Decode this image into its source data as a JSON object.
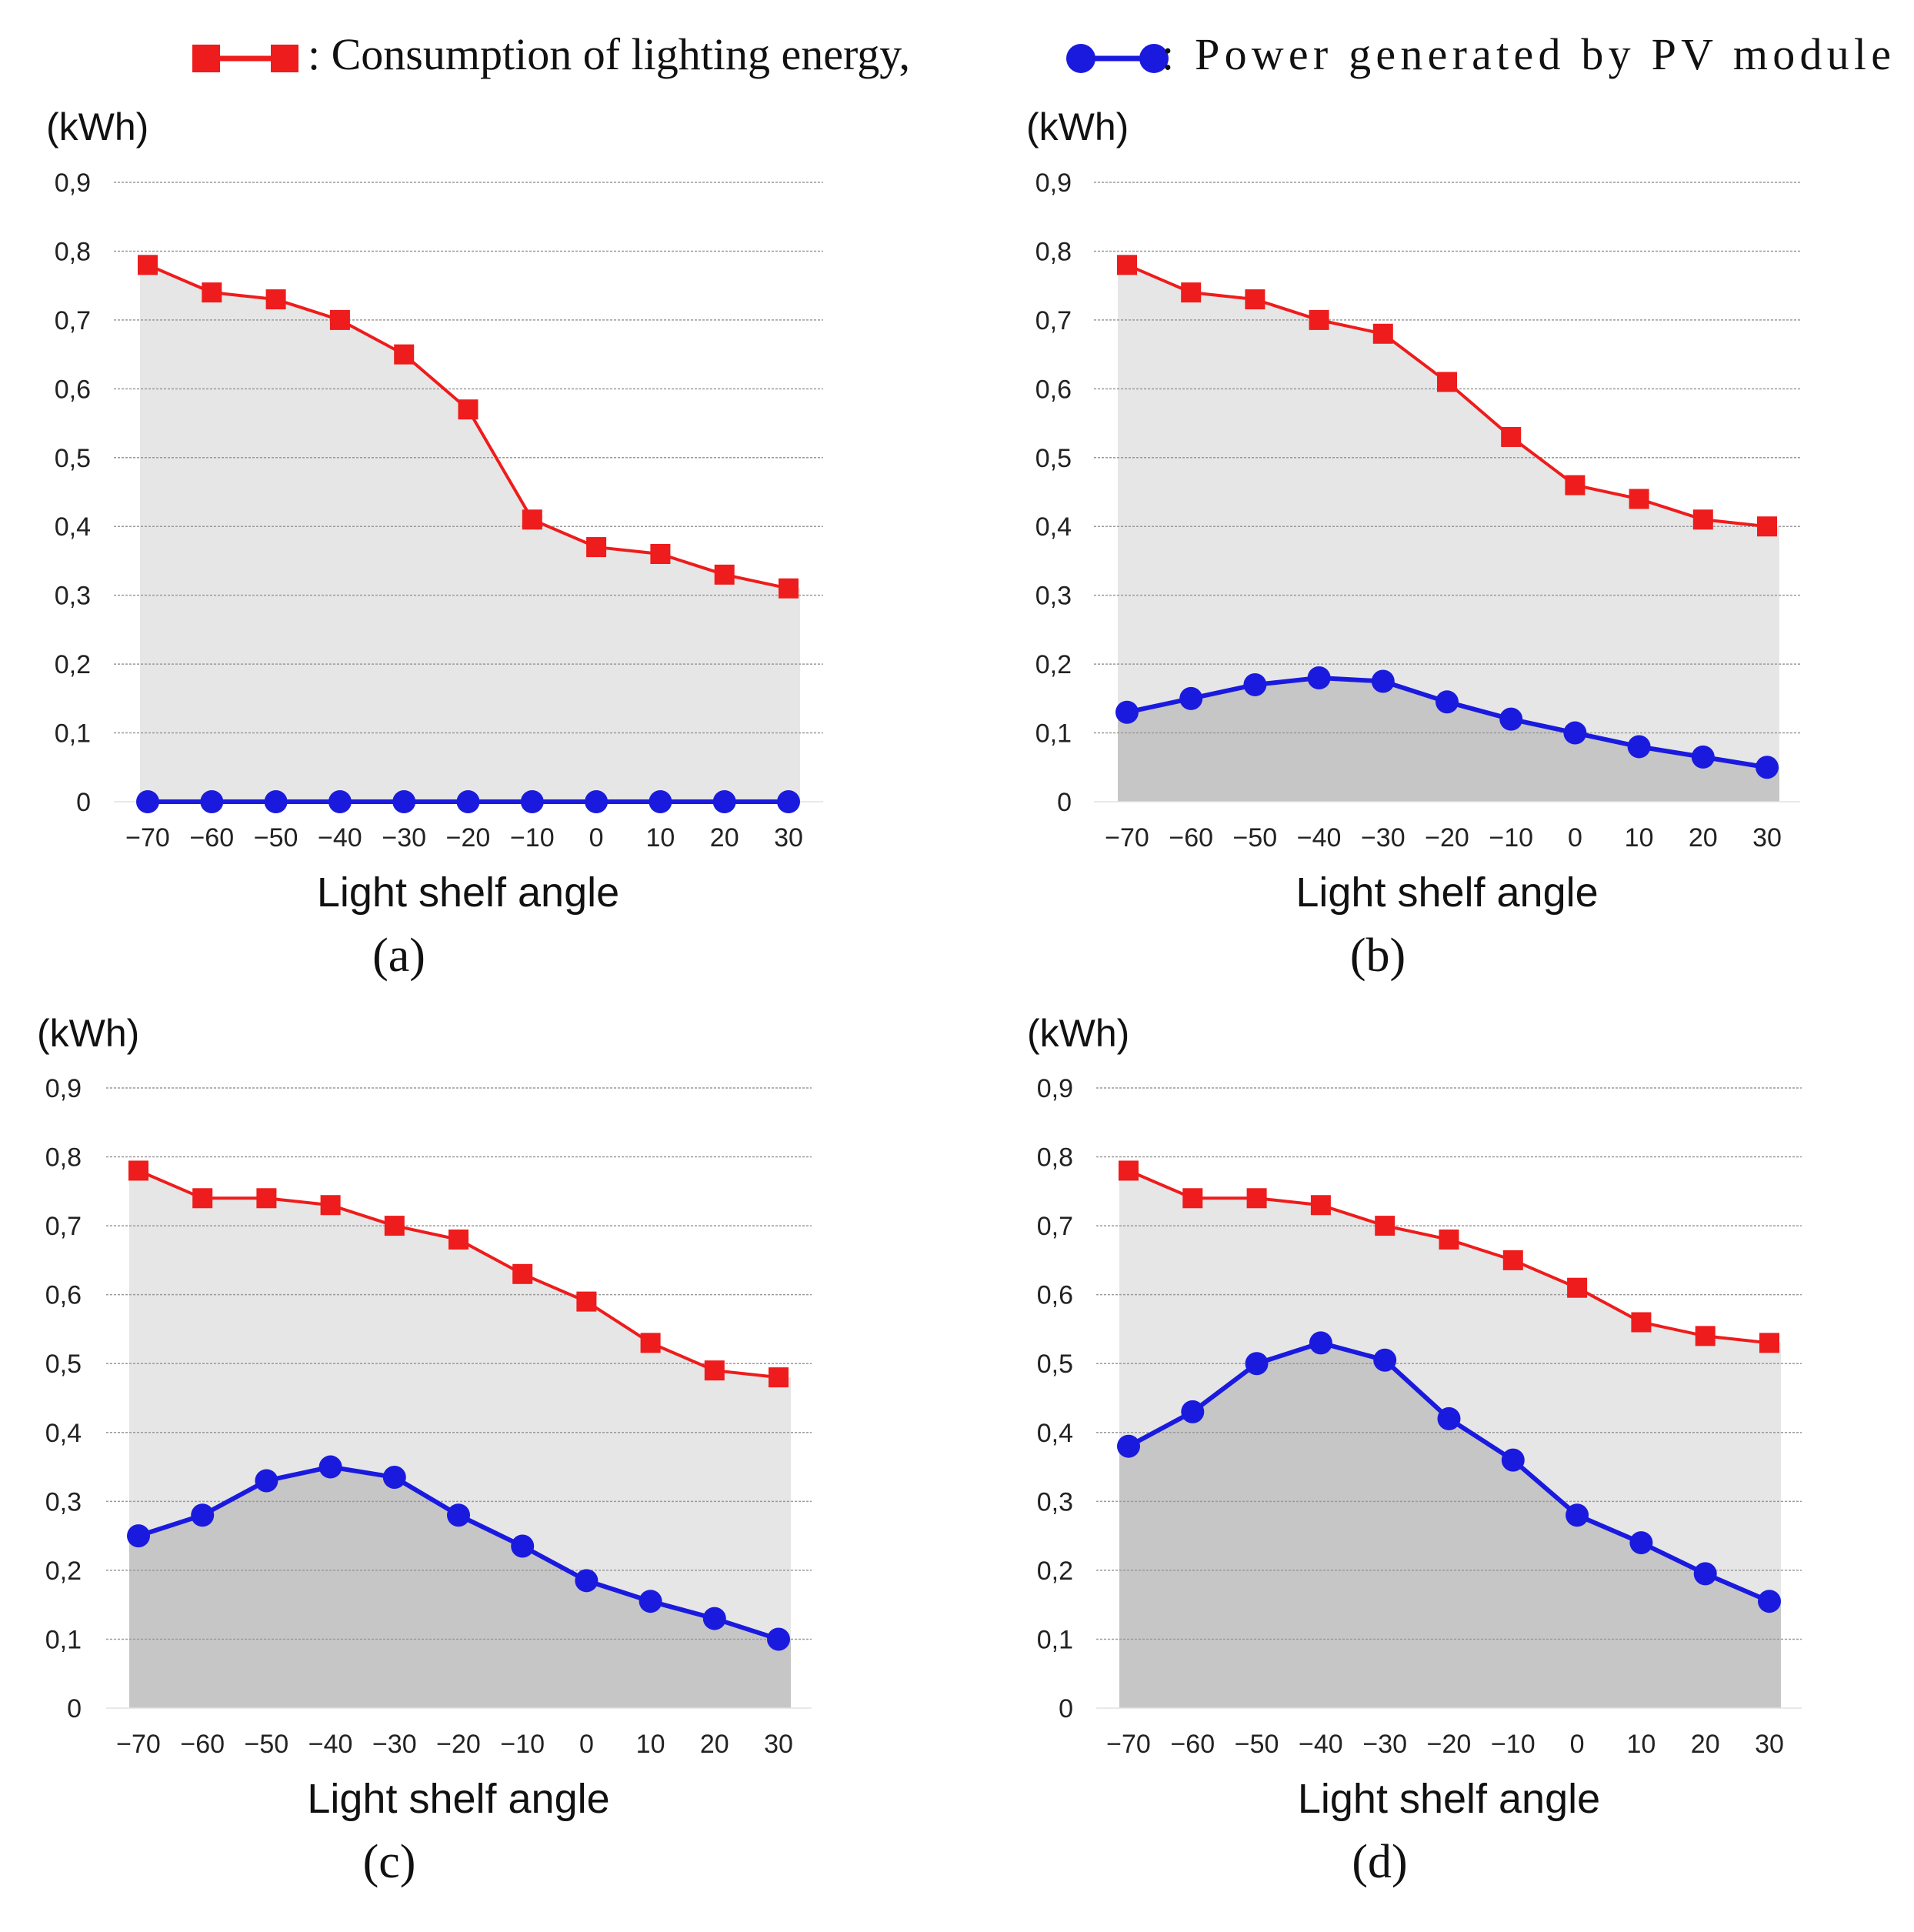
{
  "legend": {
    "consumption_label": ": Consumption of lighting energy,",
    "pv_label": ": Power generated by PV module",
    "consumption_color": "#ee1c1c",
    "pv_color": "#1a1adf"
  },
  "colors": {
    "upper_fill": "#e6e6e6",
    "lower_fill": "#c6c6c6",
    "grid": "#9a9a9a"
  },
  "chart_data": [
    {
      "type": "line",
      "panel_label": "(a)",
      "ylabel": "(kWh)",
      "xlabel": "Light shelf angle",
      "ylim": [
        0,
        0.9
      ],
      "ytick_values": [
        0,
        0.1,
        0.2,
        0.3,
        0.4,
        0.5,
        0.6,
        0.7,
        0.8,
        0.9
      ],
      "ytick_labels": [
        "0",
        "0,1",
        "0,2",
        "0,3",
        "0,4",
        "0,5",
        "0,6",
        "0,7",
        "0,8",
        "0,9"
      ],
      "categories": [
        "−70",
        "−60",
        "−50",
        "−40",
        "−30",
        "−20",
        "−10",
        "0",
        "10",
        "20",
        "30"
      ],
      "series": [
        {
          "name": "Consumption of lighting energy",
          "marker": "square",
          "values": [
            0.78,
            0.74,
            0.73,
            0.7,
            0.65,
            0.57,
            0.41,
            0.37,
            0.36,
            0.33,
            0.31
          ]
        },
        {
          "name": "Power generated by PV module",
          "marker": "circle",
          "values": [
            0,
            0,
            0,
            0,
            0,
            0,
            0,
            0,
            0,
            0,
            0
          ]
        }
      ]
    },
    {
      "type": "line",
      "panel_label": "(b)",
      "ylabel": "(kWh)",
      "xlabel": "Light shelf angle",
      "ylim": [
        0,
        0.9
      ],
      "ytick_values": [
        0,
        0.1,
        0.2,
        0.3,
        0.4,
        0.5,
        0.6,
        0.7,
        0.8,
        0.9
      ],
      "ytick_labels": [
        "0",
        "0,1",
        "0,2",
        "0,3",
        "0,4",
        "0,5",
        "0,6",
        "0,7",
        "0,8",
        "0,9"
      ],
      "categories": [
        "−70",
        "−60",
        "−50",
        "−40",
        "−30",
        "−20",
        "−10",
        "0",
        "10",
        "20",
        "30"
      ],
      "series": [
        {
          "name": "Consumption of lighting energy",
          "marker": "square",
          "values": [
            0.78,
            0.74,
            0.73,
            0.7,
            0.68,
            0.61,
            0.53,
            0.46,
            0.44,
            0.41,
            0.4
          ]
        },
        {
          "name": "Power generated by PV module",
          "marker": "circle",
          "values": [
            0.13,
            0.15,
            0.17,
            0.18,
            0.175,
            0.145,
            0.12,
            0.1,
            0.08,
            0.065,
            0.05
          ]
        }
      ]
    },
    {
      "type": "line",
      "panel_label": "(c)",
      "ylabel": "(kWh)",
      "xlabel": "Light shelf angle",
      "ylim": [
        0,
        0.9
      ],
      "ytick_values": [
        0,
        0.1,
        0.2,
        0.3,
        0.4,
        0.5,
        0.6,
        0.7,
        0.8,
        0.9
      ],
      "ytick_labels": [
        "0",
        "0,1",
        "0,2",
        "0,3",
        "0,4",
        "0,5",
        "0,6",
        "0,7",
        "0,8",
        "0,9"
      ],
      "categories": [
        "−70",
        "−60",
        "−50",
        "−40",
        "−30",
        "−20",
        "−10",
        "0",
        "10",
        "20",
        "30"
      ],
      "series": [
        {
          "name": "Consumption of lighting energy",
          "marker": "square",
          "values": [
            0.78,
            0.74,
            0.74,
            0.73,
            0.7,
            0.68,
            0.63,
            0.59,
            0.53,
            0.49,
            0.48
          ]
        },
        {
          "name": "Power generated by PV module",
          "marker": "circle",
          "values": [
            0.25,
            0.28,
            0.33,
            0.35,
            0.335,
            0.28,
            0.235,
            0.185,
            0.155,
            0.13,
            0.1
          ]
        }
      ]
    },
    {
      "type": "line",
      "panel_label": "(d)",
      "ylabel": "(kWh)",
      "xlabel": "Light shelf angle",
      "ylim": [
        0,
        0.9
      ],
      "ytick_values": [
        0,
        0.1,
        0.2,
        0.3,
        0.4,
        0.5,
        0.6,
        0.7,
        0.8,
        0.9
      ],
      "ytick_labels": [
        "0",
        "0,1",
        "0,2",
        "0,3",
        "0,4",
        "0,5",
        "0,6",
        "0,7",
        "0,8",
        "0,9"
      ],
      "categories": [
        "−70",
        "−60",
        "−50",
        "−40",
        "−30",
        "−20",
        "−10",
        "0",
        "10",
        "20",
        "30"
      ],
      "series": [
        {
          "name": "Consumption of lighting energy",
          "marker": "square",
          "values": [
            0.78,
            0.74,
            0.74,
            0.73,
            0.7,
            0.68,
            0.65,
            0.61,
            0.56,
            0.54,
            0.53
          ]
        },
        {
          "name": "Power generated by PV module",
          "marker": "circle",
          "values": [
            0.38,
            0.43,
            0.5,
            0.53,
            0.505,
            0.42,
            0.36,
            0.28,
            0.24,
            0.195,
            0.155
          ]
        }
      ]
    }
  ]
}
